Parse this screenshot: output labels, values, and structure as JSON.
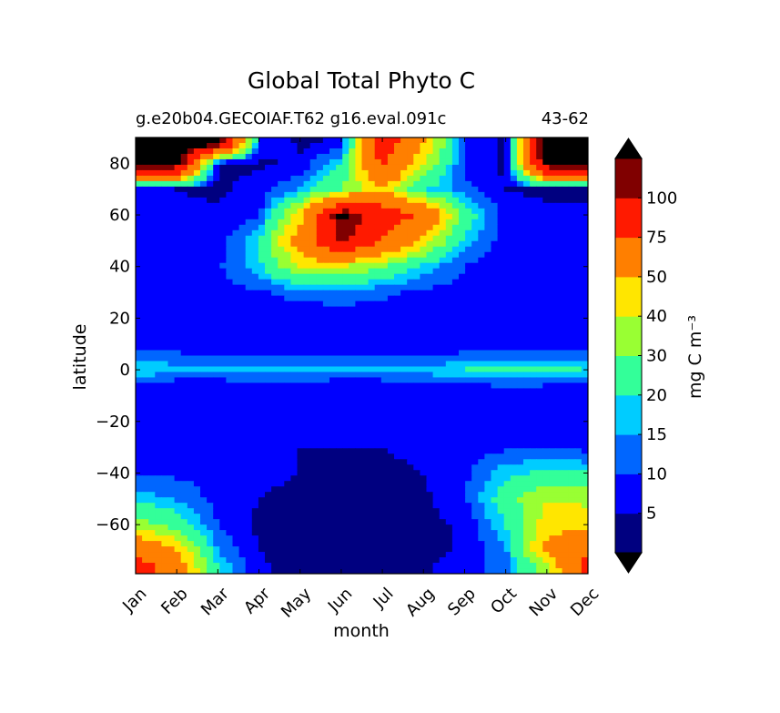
{
  "chart_data": {
    "type": "heatmap",
    "title": "Global Total Phyto C",
    "subtitle_left": "g.e20b04.GECOIAF.T62 g16.eval.091c",
    "subtitle_right": "43-62",
    "xlabel": "month",
    "ylabel": "latitude",
    "x_categories": [
      "Jan",
      "Feb",
      "Mar",
      "Apr",
      "May",
      "Jun",
      "Jul",
      "Aug",
      "Sep",
      "Oct",
      "Nov",
      "Dec"
    ],
    "yticks": [
      80,
      60,
      40,
      20,
      0,
      -20,
      -40,
      -60
    ],
    "yticklabels": [
      "80",
      "60",
      "40",
      "20",
      "0",
      "−20",
      "−40",
      "−60"
    ],
    "ylim": [
      -79,
      90
    ],
    "colorbar": {
      "label": "mg C m⁻³",
      "levels": [
        0,
        5,
        10,
        15,
        20,
        30,
        40,
        50,
        75,
        100
      ],
      "tick_labels": [
        "5",
        "10",
        "15",
        "20",
        "30",
        "40",
        "50",
        "75",
        "100"
      ],
      "colors": [
        "#000080",
        "#0000ff",
        "#0066ff",
        "#00ccff",
        "#33ff99",
        "#99ff33",
        "#ffe600",
        "#ff7f00",
        "#ff1a00",
        "#800000"
      ],
      "over_color": "#000000",
      "under_color": "#000000"
    },
    "field": {
      "months": [
        "Jan",
        "Feb",
        "Mar",
        "Apr",
        "May",
        "Jun",
        "Jul",
        "Aug",
        "Sep",
        "Oct",
        "Nov",
        "Dec"
      ],
      "latitudes": [
        -77,
        -70,
        -60,
        -50,
        -40,
        -30,
        -20,
        -10,
        -5,
        0,
        5,
        10,
        20,
        30,
        40,
        50,
        60,
        70,
        80,
        88
      ],
      "values": [
        [
          90,
          60,
          20,
          6,
          3,
          2,
          2,
          4,
          8,
          12,
          35,
          85
        ],
        [
          70,
          50,
          15,
          5,
          3,
          2,
          2,
          3,
          6,
          14,
          55,
          70
        ],
        [
          35,
          25,
          10,
          4,
          3,
          2,
          2,
          3,
          6,
          20,
          45,
          45
        ],
        [
          18,
          14,
          8,
          5,
          4,
          3,
          3,
          4,
          9,
          25,
          40,
          38
        ],
        [
          10,
          9,
          8,
          6,
          5,
          4,
          4,
          5,
          9,
          18,
          22,
          20
        ],
        [
          7,
          7,
          7,
          6,
          5,
          5,
          5,
          6,
          7,
          9,
          9,
          8
        ],
        [
          6,
          6,
          6,
          6,
          6,
          5,
          6,
          6,
          6,
          6,
          6,
          6
        ],
        [
          6,
          6,
          6,
          6,
          6,
          6,
          6,
          6,
          6,
          6,
          6,
          6
        ],
        [
          9,
          8,
          8,
          9,
          9,
          8,
          8,
          9,
          10,
          12,
          11,
          10
        ],
        [
          20,
          18,
          17,
          18,
          18,
          17,
          18,
          18,
          20,
          25,
          22,
          20
        ],
        [
          12,
          11,
          10,
          10,
          10,
          10,
          10,
          10,
          11,
          13,
          12,
          12
        ],
        [
          8,
          8,
          7,
          7,
          7,
          7,
          8,
          8,
          8,
          8,
          8,
          8
        ],
        [
          6,
          6,
          7,
          7,
          7,
          8,
          8,
          8,
          8,
          8,
          7,
          6
        ],
        [
          6,
          7,
          8,
          9,
          12,
          12,
          11,
          9,
          8,
          7,
          7,
          6
        ],
        [
          6,
          7,
          9,
          18,
          40,
          40,
          30,
          18,
          10,
          7,
          7,
          6
        ],
        [
          6,
          6,
          7,
          20,
          60,
          105,
          75,
          45,
          18,
          7,
          6,
          6
        ],
        [
          7,
          6,
          6,
          9,
          45,
          115,
          90,
          70,
          25,
          7,
          6,
          6
        ],
        [
          5,
          5,
          4,
          7,
          15,
          30,
          50,
          20,
          12,
          5,
          4,
          4
        ],
        [
          120,
          120,
          4,
          4,
          6,
          20,
          80,
          40,
          8,
          4,
          120,
          120
        ],
        [
          130,
          130,
          120,
          10,
          4,
          6,
          90,
          50,
          9,
          4,
          130,
          130
        ]
      ]
    }
  }
}
